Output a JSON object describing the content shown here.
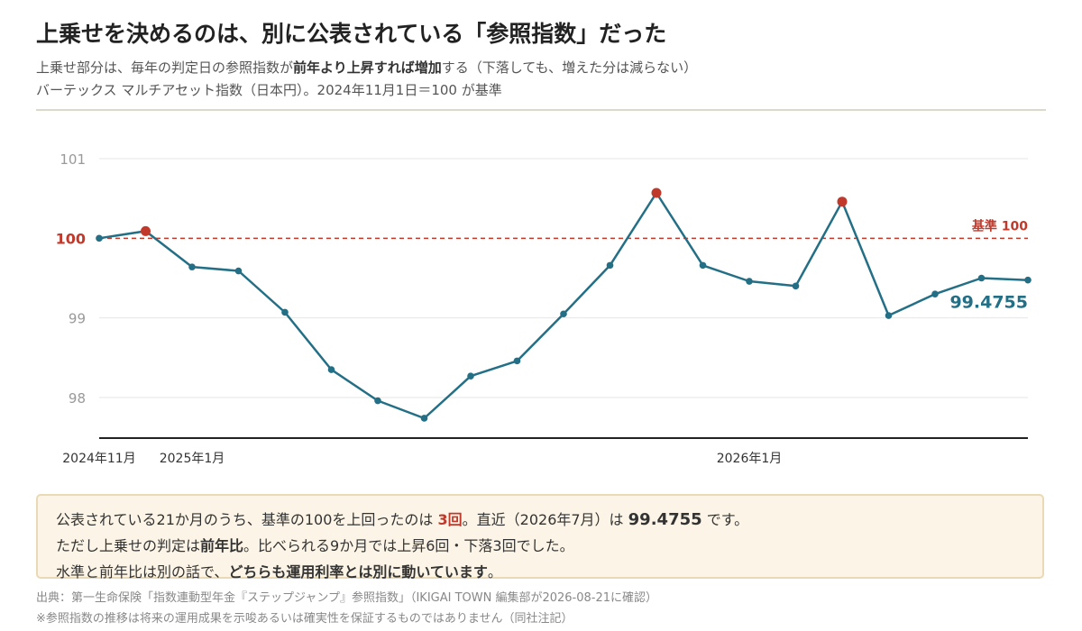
{
  "header": {
    "title": "上乗せを決めるのは、別に公表されている「参照指数」だった",
    "subtitle1_a": "上乗せ部分は、毎年の判定日の参照指数が",
    "subtitle1_b": "前年より上昇すれば増加",
    "subtitle1_c": "する（下落しても、増えた分は減らない）",
    "subtitle2": "バーテックス マルチアセット指数（日本円）。2024年11月1日＝100 が基準"
  },
  "chart_data": {
    "type": "line",
    "ylim": [
      97.6,
      101.2
    ],
    "yticks": [
      "98",
      "99",
      "100",
      "101"
    ],
    "x_tick_labels": [
      {
        "index": 0,
        "label": "2024年11月"
      },
      {
        "index": 2,
        "label": "2025年1月"
      },
      {
        "index": 14,
        "label": "2026年1月"
      }
    ],
    "baseline": {
      "value": 100,
      "label": "基準 100"
    },
    "series": [
      {
        "values": [
          100.0,
          100.09,
          99.64,
          99.59,
          99.07,
          98.35,
          97.96,
          97.74,
          98.27,
          98.46,
          99.05,
          99.66,
          100.57,
          99.66,
          99.46,
          99.4,
          100.46,
          99.03,
          99.3,
          99.5,
          99.4755
        ],
        "highlight_indices": [
          1,
          12,
          16
        ]
      }
    ],
    "last_value_label": "99.4755",
    "colors": {
      "line": "#236f86",
      "highlight": "#c0392b",
      "baseline": "#c0392b",
      "grid": "#e6e6e6",
      "axis": "#222222",
      "tick": "#999999"
    }
  },
  "summary": {
    "l1_a": "公表されている21か月のうち、基準の100を上回ったのは ",
    "l1_b": "3回",
    "l1_c": "。直近（2026年7月）は ",
    "l1_d": "99.4755",
    "l1_e": " です。",
    "l2_a": "ただし上乗せの判定は",
    "l2_b": "前年比",
    "l2_c": "。比べられる9か月では上昇6回・下落3回でした。",
    "l3_a": "水準と前年比は別の話で、",
    "l3_b": "どちらも運用利率とは別に動いています",
    "l3_c": "。"
  },
  "footer": {
    "source": "出典：第一生命保険「指数連動型年金『ステップジャンプ』参照指数」（IKIGAI TOWN 編集部が2026-08-21に確認）",
    "note": "※参照指数の推移は将来の運用成果を示唆あるいは確実性を保証するものではありません（同社注記）"
  }
}
